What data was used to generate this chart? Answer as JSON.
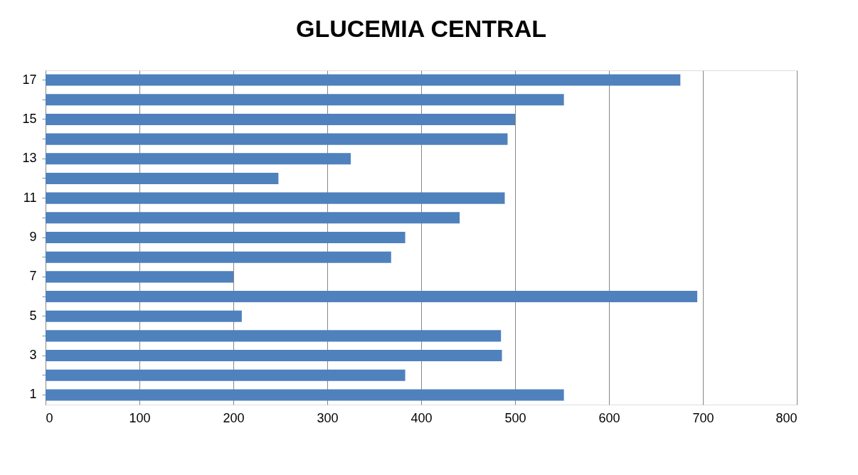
{
  "chart_data": {
    "type": "bar",
    "title": "GLUCEMIA CENTRAL",
    "orientation": "horizontal",
    "categories": [
      "17",
      null,
      "15",
      null,
      "13",
      null,
      "11",
      null,
      "9",
      null,
      "7",
      null,
      "5",
      null,
      "3",
      null,
      "1"
    ],
    "values": [
      676,
      552,
      500,
      492,
      325,
      248,
      489,
      441,
      383,
      368,
      200,
      694,
      209,
      485,
      486,
      383,
      552
    ],
    "color": "#4f81bd",
    "xlim": [
      0,
      800
    ],
    "xticks": [
      0,
      100,
      200,
      300,
      400,
      500,
      600,
      700,
      800
    ],
    "grid": "x"
  }
}
